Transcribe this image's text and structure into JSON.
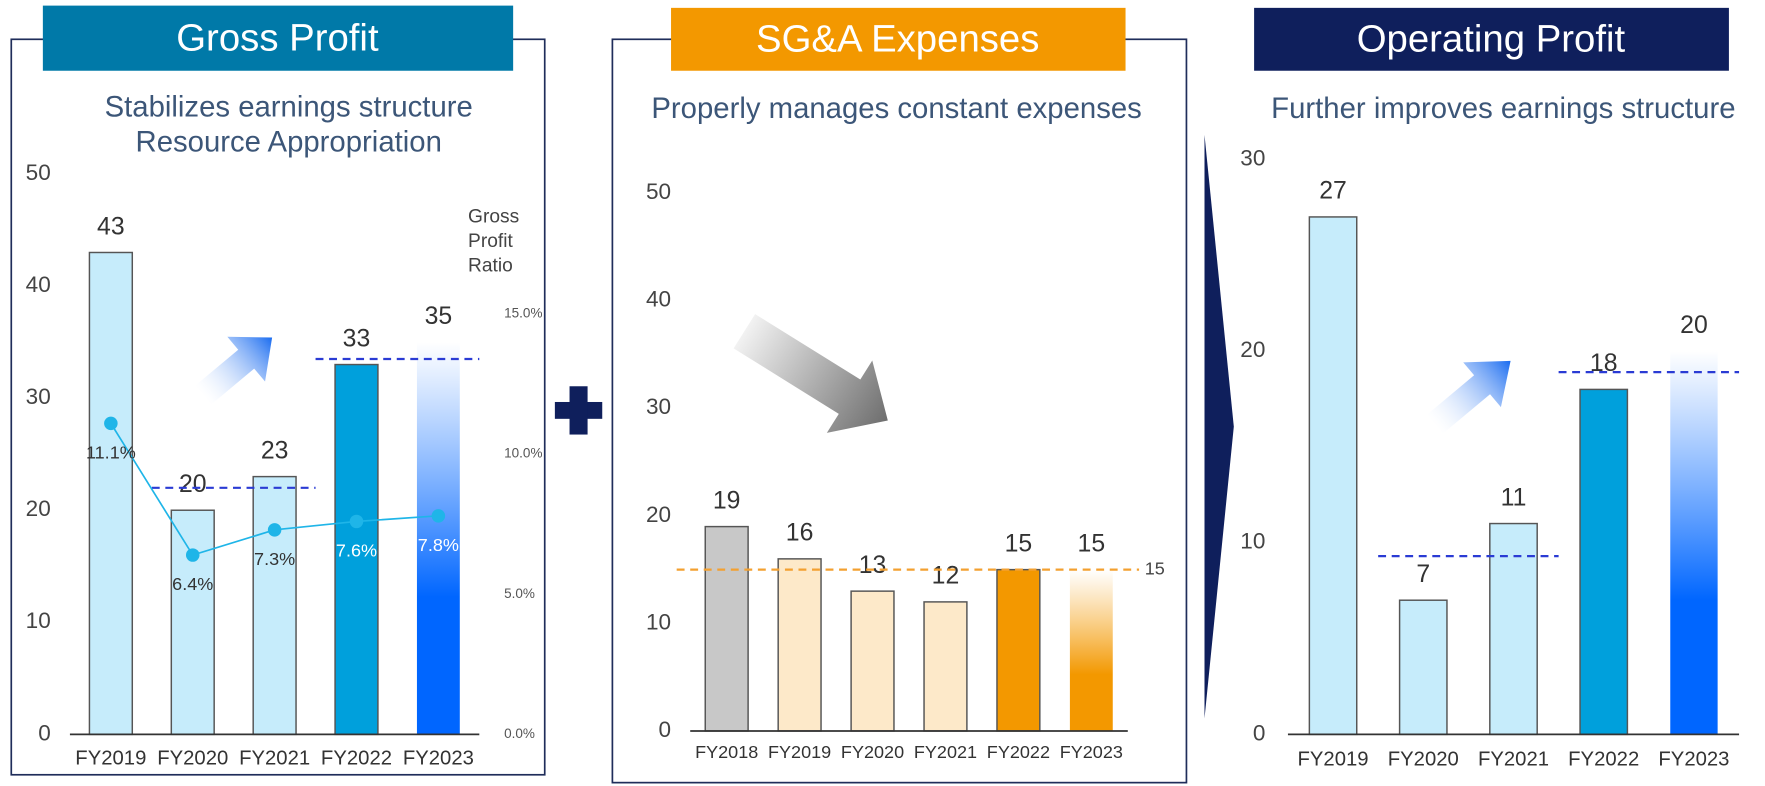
{
  "chart_data": [
    {
      "type": "bar",
      "title": "Gross Profit",
      "subtitle": [
        "Stabilizes earnings structure",
        "Resource Appropriation"
      ],
      "categories": [
        "FY2019",
        "FY2020",
        "FY2021",
        "FY2022",
        "FY2023"
      ],
      "values": [
        43,
        20,
        23,
        33,
        35
      ],
      "colors": [
        "#c6ecfb",
        "#c6ecfb",
        "#c6ecfb",
        "#00a0dc",
        "#0066ff"
      ],
      "fade_last": true,
      "title_color": "#0079a8",
      "ylim": [
        0,
        50
      ],
      "yticks": [
        0,
        10,
        20,
        30,
        40,
        50
      ],
      "y2lim": [
        0,
        20
      ],
      "y2ticks": [
        {
          "value": 0,
          "label": "0.0%"
        },
        {
          "value": 5,
          "label": "5.0%"
        },
        {
          "value": 10,
          "label": "10.0%"
        },
        {
          "value": 15,
          "label": "15.0%"
        }
      ],
      "series": [
        {
          "name": "Gross Profit Ratio",
          "color": "#1fb5e8",
          "axis": "y2",
          "values": [
            11.1,
            6.4,
            7.3,
            7.6,
            7.8
          ],
          "value_labels": [
            "11.1%",
            "6.4%",
            "7.3%",
            "7.6%",
            "7.8%"
          ]
        }
      ],
      "reference_lines": [
        {
          "value": 22,
          "categories": [
            "FY2020",
            "FY2021"
          ]
        },
        {
          "value": 33.5,
          "categories": [
            "FY2022",
            "FY2023"
          ]
        }
      ],
      "reference_color": "#2a3bd4"
    },
    {
      "type": "bar",
      "title": "SG&A Expenses",
      "subtitle": [
        "Properly manages constant expenses"
      ],
      "categories": [
        "FY2018",
        "FY2019",
        "FY2020",
        "FY2021",
        "FY2022",
        "FY2023"
      ],
      "values": [
        19,
        16,
        13,
        12,
        15,
        15
      ],
      "colors": [
        "#c8c8c8",
        "#fde9c9",
        "#fde9c9",
        "#fde9c9",
        "#f39800",
        "#f39800"
      ],
      "fade_last": true,
      "title_color": "#f39800",
      "ylim": [
        0,
        50
      ],
      "yticks": [
        0,
        10,
        20,
        30,
        40,
        50
      ],
      "reference_lines": [
        {
          "value": 15
        }
      ],
      "reference_color": "#f3a030"
    },
    {
      "type": "bar",
      "title": "Operating Profit",
      "subtitle": [
        "Further improves earnings structure"
      ],
      "categories": [
        "FY2019",
        "FY2020",
        "FY2021",
        "FY2022",
        "FY2023"
      ],
      "values": [
        27,
        7,
        11,
        18,
        20
      ],
      "colors": [
        "#c6ecfb",
        "#c6ecfb",
        "#c6ecfb",
        "#00a0dc",
        "#0066ff"
      ],
      "fade_last": true,
      "title_color": "#0f1f5c",
      "ylim": [
        0,
        30
      ],
      "yticks": [
        0,
        10,
        20,
        30
      ],
      "reference_lines": [
        {
          "value": 9.3,
          "categories": [
            "FY2020",
            "FY2021"
          ]
        },
        {
          "value": 18.9,
          "categories": [
            "FY2022",
            "FY2023"
          ]
        }
      ],
      "reference_color": "#2a3bd4"
    }
  ]
}
